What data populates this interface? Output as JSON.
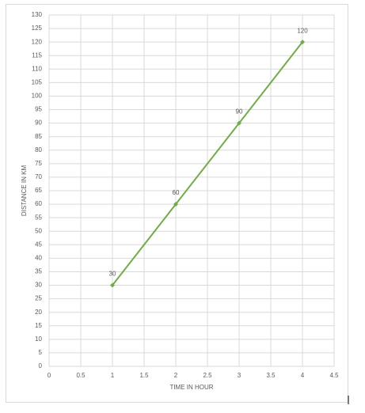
{
  "chart_data": {
    "type": "line",
    "x_label": "TIME IN HOUR",
    "y_label": "DISTANCE IN KM",
    "x": [
      1,
      2,
      3,
      4
    ],
    "series": [
      {
        "color": "#70ad47",
        "values": [
          30,
          60,
          90,
          120
        ]
      }
    ],
    "xlim": [
      0,
      4.5
    ],
    "xticks": [
      0,
      0.5,
      1,
      1.5,
      2,
      2.5,
      3,
      3.5,
      4,
      4.5
    ],
    "ylim": [
      0,
      130
    ],
    "yticks": [
      0,
      5,
      10,
      15,
      20,
      25,
      30,
      35,
      40,
      45,
      50,
      55,
      60,
      65,
      70,
      75,
      80,
      85,
      90,
      95,
      100,
      105,
      110,
      115,
      120,
      125,
      130
    ],
    "grid": true
  }
}
